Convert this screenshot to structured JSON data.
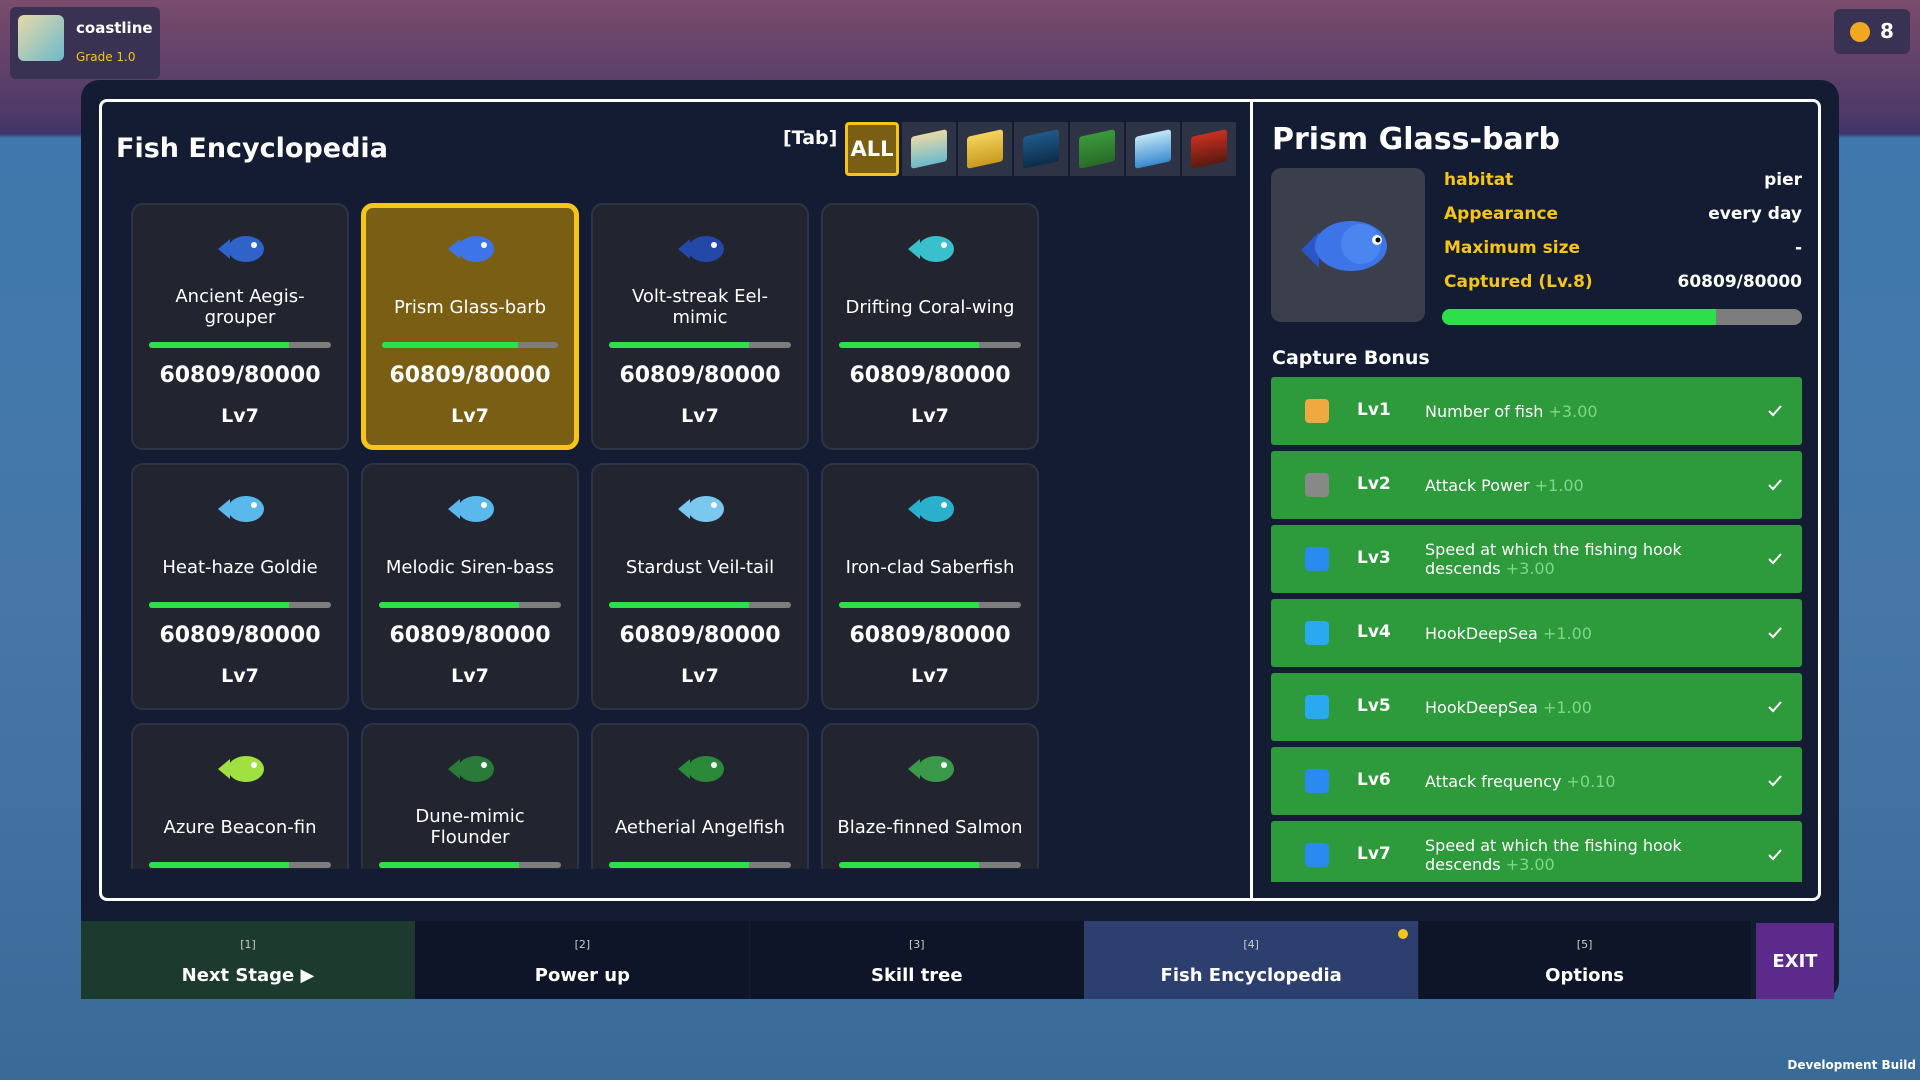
{
  "player": {
    "name": "coastline",
    "grade": "Grade 1.0"
  },
  "coins": "8",
  "encyclopedia": {
    "title": "Fish Encyclopedia",
    "tab_hint": "[Tab]",
    "filter_all": "ALL",
    "fish": [
      {
        "name": "Ancient Aegis-grouper",
        "progress": "60809/80000",
        "level": "Lv7"
      },
      {
        "name": "Prism Glass-barb",
        "progress": "60809/80000",
        "level": "Lv7"
      },
      {
        "name": "Volt-streak Eel-mimic",
        "progress": "60809/80000",
        "level": "Lv7"
      },
      {
        "name": "Drifting Coral-wing",
        "progress": "60809/80000",
        "level": "Lv7"
      },
      {
        "name": "Heat-haze Goldie",
        "progress": "60809/80000",
        "level": "Lv7"
      },
      {
        "name": "Melodic Siren-bass",
        "progress": "60809/80000",
        "level": "Lv7"
      },
      {
        "name": "Stardust Veil-tail",
        "progress": "60809/80000",
        "level": "Lv7"
      },
      {
        "name": "Iron-clad Saberfish",
        "progress": "60809/80000",
        "level": "Lv7"
      },
      {
        "name": "Azure Beacon-fin"
      },
      {
        "name": "Dune-mimic Flounder"
      },
      {
        "name": "Aetherial Angelfish"
      },
      {
        "name": "Blaze-finned Salmon"
      }
    ]
  },
  "detail": {
    "name": "Prism Glass-barb",
    "rows": [
      {
        "label": "habitat",
        "value": "pier"
      },
      {
        "label": "Appearance",
        "value": "every day"
      },
      {
        "label": "Maximum size",
        "value": "-"
      },
      {
        "label": "Captured (Lv.8)",
        "value": "60809/80000"
      }
    ],
    "bonus_title": "Capture Bonus",
    "bonuses": [
      {
        "level": "Lv1",
        "text": "Number of fish",
        "amount": "+3.00"
      },
      {
        "level": "Lv2",
        "text": "Attack Power",
        "amount": "+1.00"
      },
      {
        "level": "Lv3",
        "text": "Speed at which the fishing hook descends",
        "amount": "+3.00"
      },
      {
        "level": "Lv4",
        "text": "HookDeepSea",
        "amount": "+1.00"
      },
      {
        "level": "Lv5",
        "text": "HookDeepSea",
        "amount": "+1.00"
      },
      {
        "level": "Lv6",
        "text": "Attack frequency",
        "amount": "+0.10"
      },
      {
        "level": "Lv7",
        "text": "Speed at which the fishing hook descends",
        "amount": "+3.00"
      }
    ]
  },
  "nav": [
    {
      "key": "[1]",
      "label": "Next Stage ▶"
    },
    {
      "key": "[2]",
      "label": "Power up"
    },
    {
      "key": "[3]",
      "label": "Skill tree"
    },
    {
      "key": "[4]",
      "label": "Fish Encyclopedia"
    },
    {
      "key": "[5]",
      "label": "Options"
    }
  ],
  "exit": "EXIT",
  "footer": "Development Build"
}
